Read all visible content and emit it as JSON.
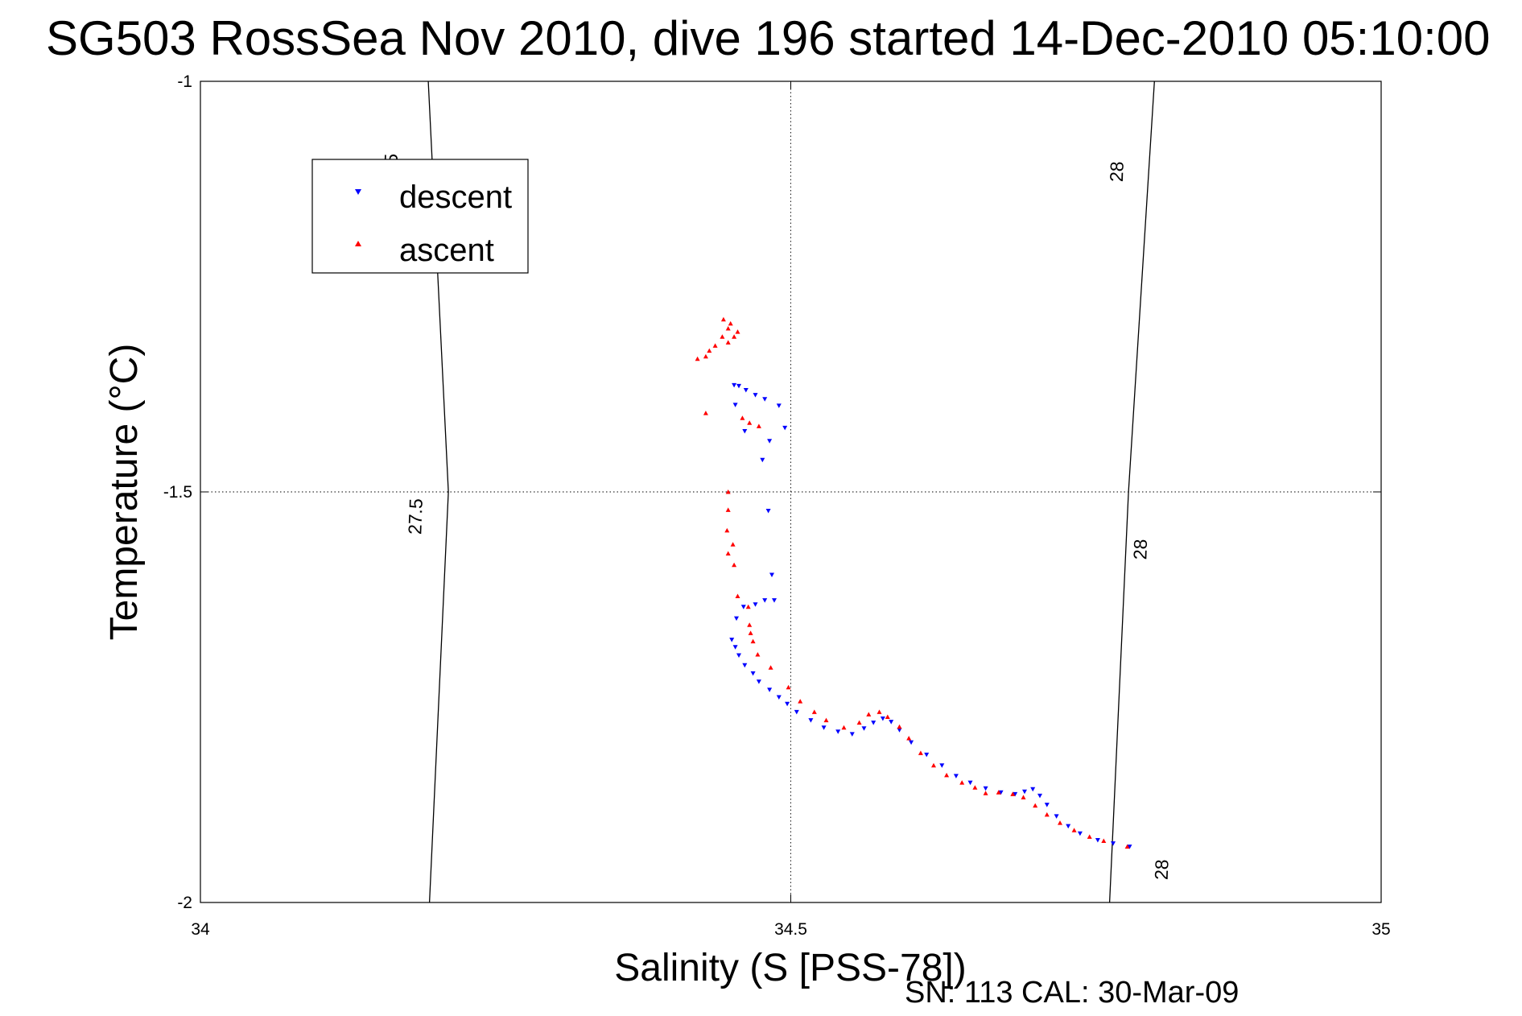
{
  "chart_data": {
    "type": "scatter",
    "title": "SG503 RossSea Nov 2010, dive 196 started 14-Dec-2010 05:10:00",
    "xlabel": "Salinity (S [PSS-78])",
    "ylabel": "Temperature (°C)",
    "xlim": [
      34,
      35
    ],
    "ylim": [
      -2,
      -1
    ],
    "x_ticks": [
      34,
      34.5,
      35
    ],
    "x_tick_labels": [
      "34",
      "34.5",
      "35"
    ],
    "y_ticks": [
      -1,
      -1.5,
      -2
    ],
    "y_tick_labels": [
      "-1",
      "-1.5",
      "-2"
    ],
    "grid": true,
    "legend": {
      "placement": "top-left",
      "entries": [
        "descent",
        "ascent"
      ]
    },
    "footer": "SN: 113  CAL: 30-Mar-09",
    "isopycnals": [
      {
        "label": "27.5",
        "points": [
          [
            34.194,
            -2.0
          ],
          [
            34.21,
            -1.5
          ],
          [
            34.193,
            -1.0
          ]
        ],
        "label_positions": [
          [
            34.161,
            -1.11
          ],
          [
            34.182,
            -1.53
          ]
        ]
      },
      {
        "label": "28",
        "points": [
          [
            34.77,
            -2.0
          ],
          [
            34.786,
            -1.5
          ],
          [
            34.808,
            -1.0
          ]
        ],
        "label_positions": [
          [
            34.776,
            -1.11
          ],
          [
            34.796,
            -1.57
          ],
          [
            34.814,
            -1.96
          ]
        ]
      }
    ],
    "series": [
      {
        "name": "descent",
        "color": "#0000ff",
        "marker": "triangle-down",
        "points": [
          [
            34.452,
            -1.37
          ],
          [
            34.456,
            -1.371
          ],
          [
            34.462,
            -1.376
          ],
          [
            34.47,
            -1.382
          ],
          [
            34.478,
            -1.387
          ],
          [
            34.49,
            -1.395
          ],
          [
            34.453,
            -1.394
          ],
          [
            34.495,
            -1.422
          ],
          [
            34.461,
            -1.426
          ],
          [
            34.482,
            -1.438
          ],
          [
            34.476,
            -1.461
          ],
          [
            34.481,
            -1.523
          ],
          [
            34.484,
            -1.601
          ],
          [
            34.486,
            -1.632
          ],
          [
            34.478,
            -1.632
          ],
          [
            34.47,
            -1.637
          ],
          [
            34.46,
            -1.64
          ],
          [
            34.454,
            -1.654
          ],
          [
            34.45,
            -1.68
          ],
          [
            34.453,
            -1.689
          ],
          [
            34.456,
            -1.699
          ],
          [
            34.461,
            -1.711
          ],
          [
            34.468,
            -1.721
          ],
          [
            34.473,
            -1.731
          ],
          [
            34.482,
            -1.741
          ],
          [
            34.49,
            -1.75
          ],
          [
            34.497,
            -1.758
          ],
          [
            34.505,
            -1.768
          ],
          [
            34.517,
            -1.778
          ],
          [
            34.528,
            -1.787
          ],
          [
            34.54,
            -1.792
          ],
          [
            34.552,
            -1.795
          ],
          [
            34.562,
            -1.788
          ],
          [
            34.57,
            -1.781
          ],
          [
            34.578,
            -1.776
          ],
          [
            34.585,
            -1.78
          ],
          [
            34.592,
            -1.79
          ],
          [
            34.602,
            -1.805
          ],
          [
            34.615,
            -1.82
          ],
          [
            34.628,
            -1.833
          ],
          [
            34.64,
            -1.846
          ],
          [
            34.652,
            -1.854
          ],
          [
            34.665,
            -1.861
          ],
          [
            34.678,
            -1.866
          ],
          [
            34.69,
            -1.868
          ],
          [
            34.698,
            -1.865
          ],
          [
            34.705,
            -1.862
          ],
          [
            34.711,
            -1.87
          ],
          [
            34.717,
            -1.881
          ],
          [
            34.725,
            -1.895
          ],
          [
            34.735,
            -1.907
          ],
          [
            34.745,
            -1.916
          ],
          [
            34.76,
            -1.924
          ],
          [
            34.773,
            -1.928
          ],
          [
            34.787,
            -1.932
          ]
        ]
      },
      {
        "name": "ascent",
        "color": "#ff0000",
        "marker": "triangle-up",
        "points": [
          [
            34.443,
            -1.29
          ],
          [
            34.449,
            -1.295
          ],
          [
            34.447,
            -1.301
          ],
          [
            34.455,
            -1.305
          ],
          [
            34.442,
            -1.311
          ],
          [
            34.452,
            -1.311
          ],
          [
            34.447,
            -1.318
          ],
          [
            34.436,
            -1.322
          ],
          [
            34.431,
            -1.328
          ],
          [
            34.428,
            -1.335
          ],
          [
            34.421,
            -1.338
          ],
          [
            34.428,
            -1.404
          ],
          [
            34.459,
            -1.41
          ],
          [
            34.465,
            -1.416
          ],
          [
            34.473,
            -1.42
          ],
          [
            34.447,
            -1.5
          ],
          [
            34.447,
            -1.522
          ],
          [
            34.446,
            -1.547
          ],
          [
            34.451,
            -1.564
          ],
          [
            34.447,
            -1.575
          ],
          [
            34.452,
            -1.589
          ],
          [
            34.455,
            -1.627
          ],
          [
            34.464,
            -1.64
          ],
          [
            34.465,
            -1.662
          ],
          [
            34.466,
            -1.672
          ],
          [
            34.468,
            -1.682
          ],
          [
            34.472,
            -1.698
          ],
          [
            34.483,
            -1.714
          ],
          [
            34.498,
            -1.738
          ],
          [
            34.508,
            -1.755
          ],
          [
            34.52,
            -1.768
          ],
          [
            34.53,
            -1.778
          ],
          [
            34.545,
            -1.787
          ],
          [
            34.558,
            -1.781
          ],
          [
            34.566,
            -1.771
          ],
          [
            34.575,
            -1.768
          ],
          [
            34.582,
            -1.774
          ],
          [
            34.592,
            -1.786
          ],
          [
            34.6,
            -1.8
          ],
          [
            34.61,
            -1.818
          ],
          [
            34.621,
            -1.833
          ],
          [
            34.632,
            -1.845
          ],
          [
            34.645,
            -1.854
          ],
          [
            34.656,
            -1.86
          ],
          [
            34.665,
            -1.867
          ],
          [
            34.676,
            -1.866
          ],
          [
            34.688,
            -1.868
          ],
          [
            34.697,
            -1.872
          ],
          [
            34.707,
            -1.882
          ],
          [
            34.717,
            -1.893
          ],
          [
            34.728,
            -1.903
          ],
          [
            34.74,
            -1.912
          ],
          [
            34.753,
            -1.92
          ],
          [
            34.765,
            -1.925
          ],
          [
            34.785,
            -1.932
          ]
        ]
      }
    ]
  }
}
